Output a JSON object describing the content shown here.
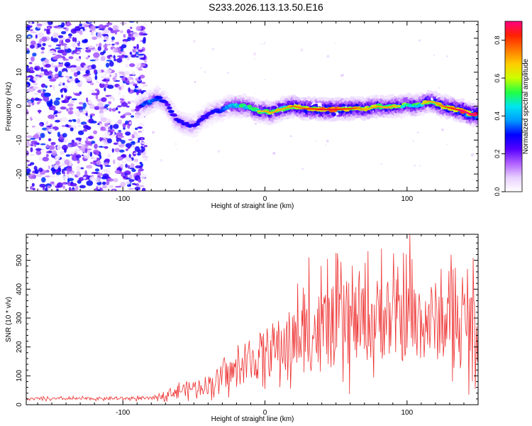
{
  "figure_title": "S233.2026.113.13.50.E16",
  "colors": {
    "snr_line": "#ee3333",
    "speckle": "#8a2be2",
    "colorbar_stops": [
      "#ffffff",
      "#e8d0ff",
      "#b060ff",
      "#5500ff",
      "#0000ff",
      "#0099ff",
      "#00e5ee",
      "#22ff44",
      "#ccff00",
      "#ffcc00",
      "#ff7700",
      "#ff2200",
      "#ff0080"
    ]
  },
  "chart_data": [
    {
      "type": "heatmap",
      "title": "",
      "xlabel": "Height of straight line (km)",
      "ylabel": "Frequency (Hz)",
      "xlim": [
        -168,
        150
      ],
      "ylim": [
        -25,
        25
      ],
      "x_ticks": [
        -100,
        0,
        100
      ],
      "x_tick_labels": [
        "-100",
        "0",
        "100"
      ],
      "y_ticks": [
        -20,
        -10,
        0,
        10,
        20
      ],
      "y_tick_labels": [
        "-20",
        "-10",
        "0",
        "10",
        "20"
      ],
      "colorbar": {
        "label": "Normalized spectral amplitude",
        "range": [
          0,
          0.9
        ],
        "ticks": [
          0.0,
          0.2,
          0.4,
          0.6,
          0.8
        ],
        "tick_labels": [
          "0.0",
          "0.2",
          "0.4",
          "0.6",
          "0.8"
        ]
      },
      "noise_region": {
        "x_range": [
          -168,
          -88
        ],
        "y_range": [
          -25,
          25
        ],
        "amplitude": 0.15
      },
      "ridge": [
        {
          "x": -90,
          "y": -1.0,
          "a": 0.25
        },
        {
          "x": -85,
          "y": 0.5,
          "a": 0.35
        },
        {
          "x": -80,
          "y": 1.5,
          "a": 0.4
        },
        {
          "x": -75,
          "y": 2.5,
          "a": 0.35
        },
        {
          "x": -70,
          "y": 1.0,
          "a": 0.3
        },
        {
          "x": -66,
          "y": -1.5,
          "a": 0.3
        },
        {
          "x": -62,
          "y": -4.0,
          "a": 0.3
        },
        {
          "x": -58,
          "y": -5.0,
          "a": 0.3
        },
        {
          "x": -54,
          "y": -5.5,
          "a": 0.3
        },
        {
          "x": -50,
          "y": -6.0,
          "a": 0.3
        },
        {
          "x": -46,
          "y": -4.5,
          "a": 0.3
        },
        {
          "x": -42,
          "y": -3.0,
          "a": 0.3
        },
        {
          "x": -38,
          "y": -2.0,
          "a": 0.3
        },
        {
          "x": -34,
          "y": -1.5,
          "a": 0.3
        },
        {
          "x": -30,
          "y": -1.0,
          "a": 0.35
        },
        {
          "x": -25,
          "y": 0.0,
          "a": 0.4
        },
        {
          "x": -20,
          "y": 0.0,
          "a": 0.5
        },
        {
          "x": -15,
          "y": 0.0,
          "a": 0.5
        },
        {
          "x": -10,
          "y": -0.5,
          "a": 0.55
        },
        {
          "x": -5,
          "y": -1.5,
          "a": 0.55
        },
        {
          "x": 0,
          "y": -1.5,
          "a": 0.6
        },
        {
          "x": 5,
          "y": -2.0,
          "a": 0.6
        },
        {
          "x": 10,
          "y": -1.0,
          "a": 0.6
        },
        {
          "x": 15,
          "y": -0.5,
          "a": 0.6
        },
        {
          "x": 20,
          "y": 0.0,
          "a": 0.65
        },
        {
          "x": 25,
          "y": -0.5,
          "a": 0.65
        },
        {
          "x": 30,
          "y": -0.8,
          "a": 0.7
        },
        {
          "x": 35,
          "y": -0.8,
          "a": 0.7
        },
        {
          "x": 40,
          "y": -1.0,
          "a": 0.75
        },
        {
          "x": 45,
          "y": -1.0,
          "a": 0.75
        },
        {
          "x": 50,
          "y": -1.0,
          "a": 0.75
        },
        {
          "x": 55,
          "y": -0.8,
          "a": 0.7
        },
        {
          "x": 60,
          "y": -0.8,
          "a": 0.7
        },
        {
          "x": 65,
          "y": -0.5,
          "a": 0.65
        },
        {
          "x": 70,
          "y": -1.0,
          "a": 0.6
        },
        {
          "x": 75,
          "y": -0.5,
          "a": 0.6
        },
        {
          "x": 80,
          "y": 0.0,
          "a": 0.6
        },
        {
          "x": 85,
          "y": -0.5,
          "a": 0.6
        },
        {
          "x": 90,
          "y": 0.0,
          "a": 0.6
        },
        {
          "x": 95,
          "y": 0.0,
          "a": 0.55
        },
        {
          "x": 100,
          "y": 0.5,
          "a": 0.55
        },
        {
          "x": 105,
          "y": 0.0,
          "a": 0.55
        },
        {
          "x": 110,
          "y": 0.5,
          "a": 0.55
        },
        {
          "x": 115,
          "y": 1.5,
          "a": 0.6
        },
        {
          "x": 120,
          "y": 1.0,
          "a": 0.6
        },
        {
          "x": 125,
          "y": 0.0,
          "a": 0.65
        },
        {
          "x": 130,
          "y": -0.5,
          "a": 0.7
        },
        {
          "x": 135,
          "y": -1.0,
          "a": 0.75
        },
        {
          "x": 140,
          "y": -1.5,
          "a": 0.8
        },
        {
          "x": 145,
          "y": -2.5,
          "a": 0.85
        },
        {
          "x": 150,
          "y": -2.5,
          "a": 0.85
        }
      ]
    },
    {
      "type": "line",
      "title": "",
      "xlabel": "Height of straight line (km)",
      "ylabel": "SNR (10 * v/v)",
      "xlim": [
        -168,
        150
      ],
      "ylim": [
        0,
        590
      ],
      "x_ticks": [
        -100,
        0,
        100
      ],
      "x_tick_labels": [
        "-100",
        "0",
        "100"
      ],
      "y_ticks": [
        0,
        100,
        200,
        300,
        400,
        500
      ],
      "y_tick_labels": [
        "0",
        "100",
        "200",
        "300",
        "400",
        "500"
      ],
      "series": [
        {
          "name": "SNR",
          "x_step_km": 0.5,
          "envelope_x": [
            -168,
            -80,
            -60,
            -40,
            -20,
            0,
            20,
            40,
            60,
            80,
            100,
            120,
            150
          ],
          "envelope_mean": [
            20,
            22,
            50,
            70,
            120,
            180,
            220,
            260,
            280,
            300,
            290,
            290,
            280
          ],
          "envelope_spread": [
            8,
            10,
            40,
            60,
            100,
            160,
            210,
            260,
            260,
            260,
            260,
            250,
            250
          ],
          "peaks": [
            {
              "x": 102,
              "y": 590
            },
            {
              "x": 82,
              "y": 540
            },
            {
              "x": 31,
              "y": 510
            },
            {
              "x": 44,
              "y": 505
            }
          ]
        }
      ]
    }
  ]
}
